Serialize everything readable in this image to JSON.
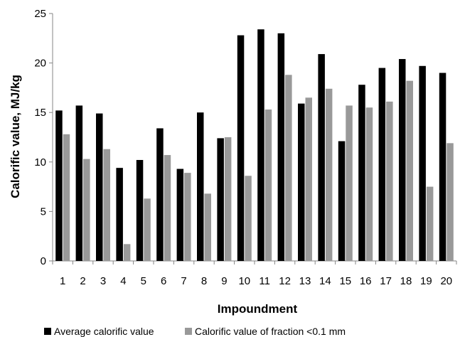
{
  "chart_data": {
    "type": "bar",
    "xlabel": "Impoundment",
    "ylabel": "Calorific value, MJ/kg",
    "ylim": [
      0,
      25
    ],
    "yticks": [
      0,
      5,
      10,
      15,
      20,
      25
    ],
    "grid": false,
    "legend_position": "bottom",
    "categories": [
      "1",
      "2",
      "3",
      "4",
      "5",
      "6",
      "7",
      "8",
      "9",
      "10",
      "11",
      "12",
      "13",
      "14",
      "15",
      "16",
      "17",
      "18",
      "19",
      "20"
    ],
    "series": [
      {
        "name": "Average calorific value",
        "color": "#000000",
        "values": [
          15.2,
          15.7,
          14.9,
          9.4,
          10.2,
          13.4,
          9.3,
          15.0,
          12.4,
          22.8,
          23.4,
          23.0,
          15.9,
          20.9,
          12.1,
          17.8,
          19.5,
          20.4,
          19.7,
          19.0
        ]
      },
      {
        "name": "Calorific value of fraction <0.1 mm",
        "color": "#999999",
        "values": [
          12.8,
          10.3,
          11.3,
          1.7,
          6.3,
          10.7,
          8.9,
          6.8,
          12.5,
          8.6,
          15.3,
          18.8,
          16.5,
          17.4,
          15.7,
          15.5,
          16.1,
          18.2,
          7.5,
          11.9
        ]
      }
    ]
  }
}
